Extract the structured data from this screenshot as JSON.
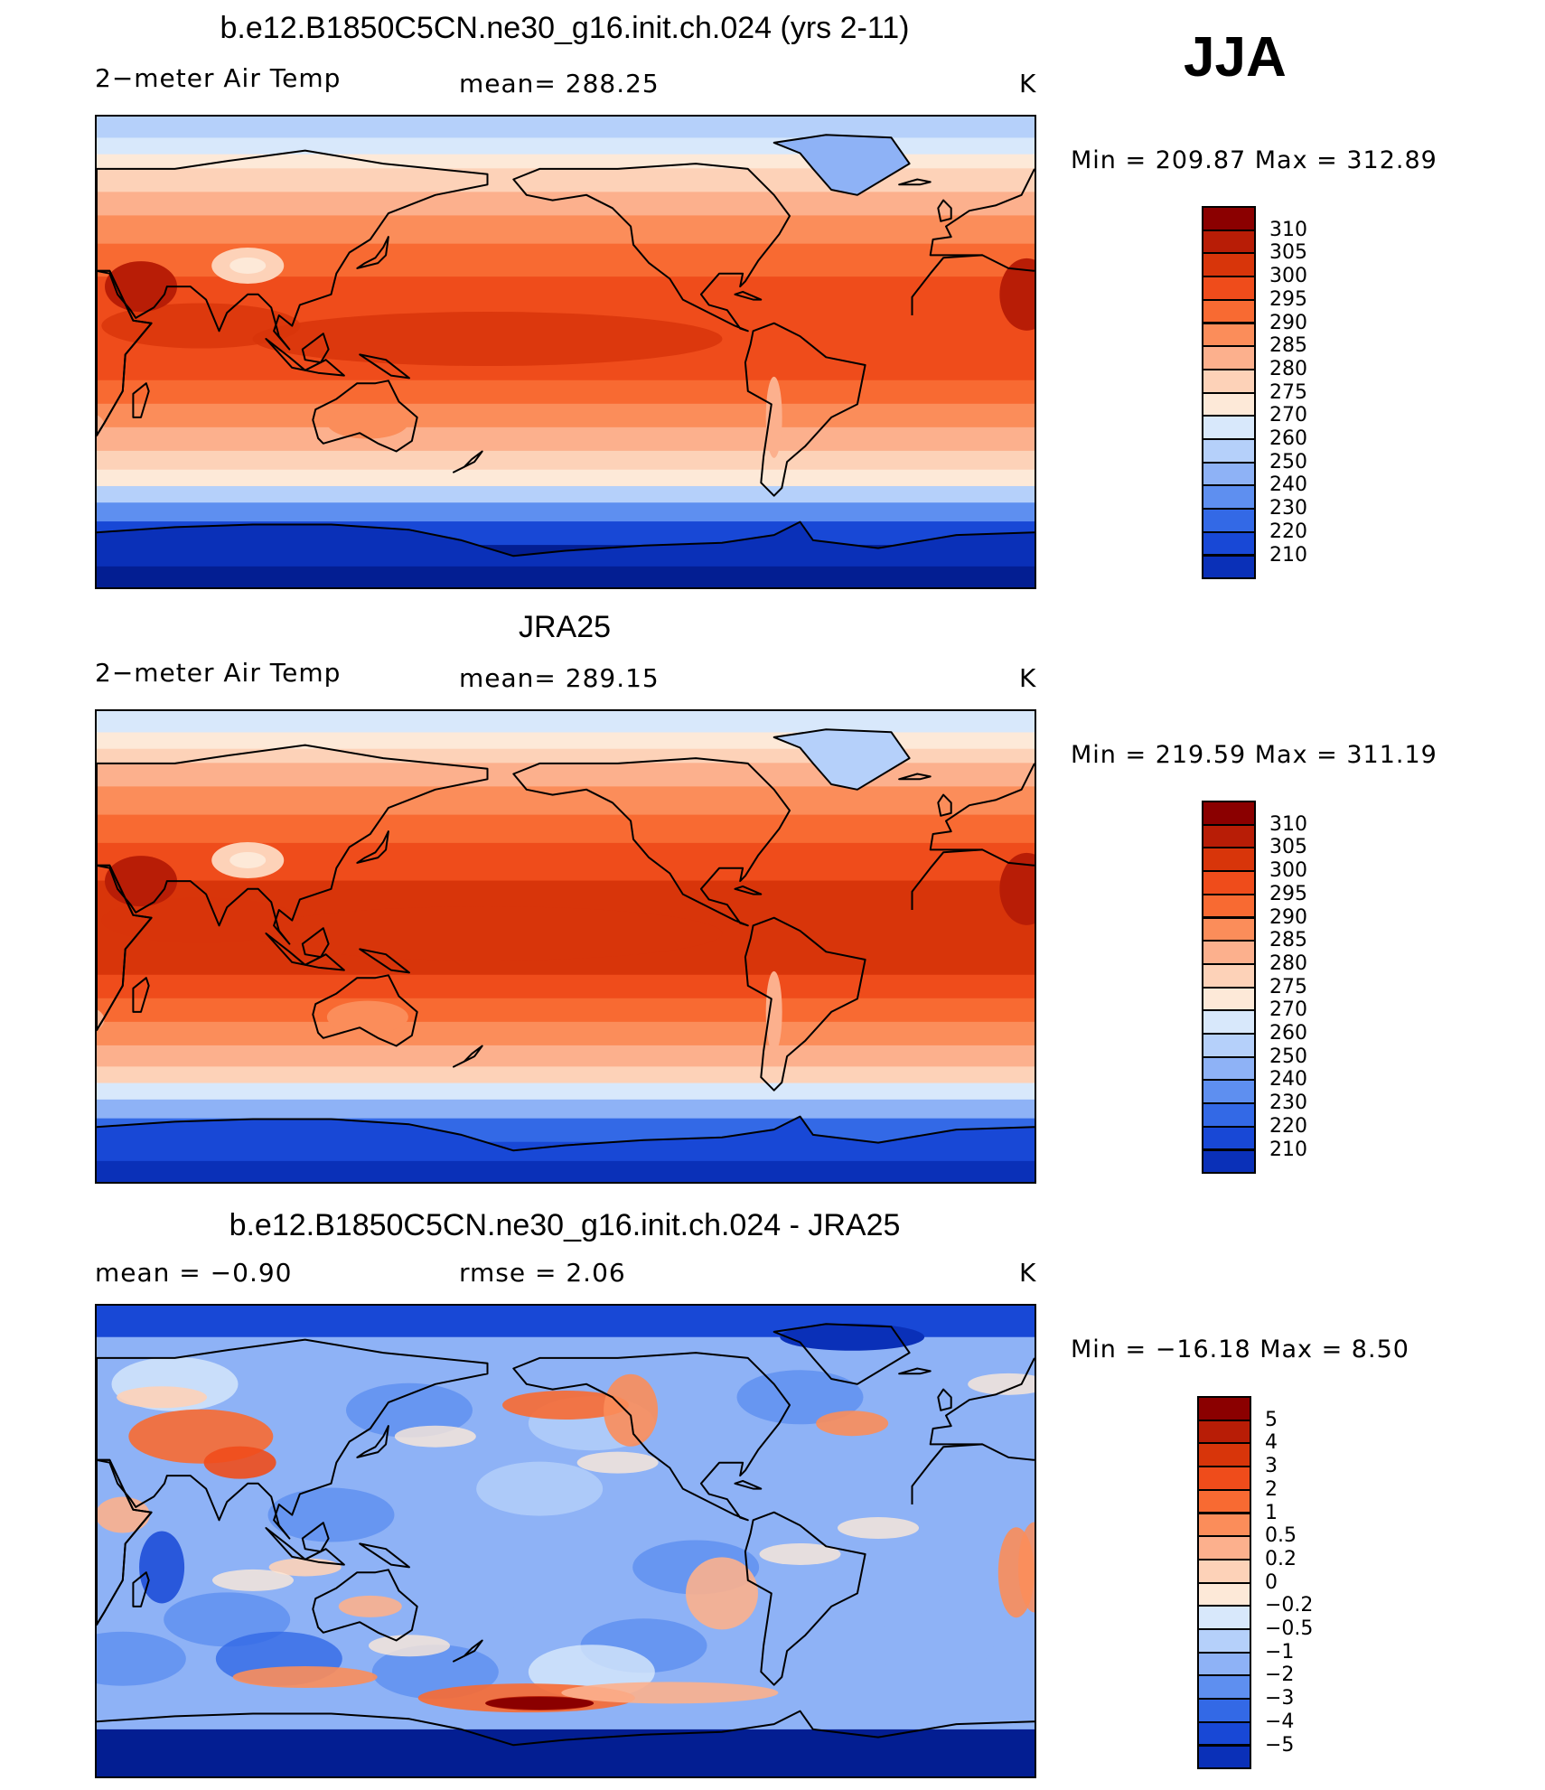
{
  "figure": {
    "season": "JJA"
  },
  "panels": [
    {
      "id": "model",
      "title": "b.e12.B1850C5CN.ne30_g16.init.ch.024 (yrs 2-11)",
      "variable": "2−meter Air Temp",
      "stat1": "mean=  288.25",
      "stat2": "",
      "units": "K",
      "minmax": "Min  =  209.87  Max  =  312.89",
      "colorbar": {
        "labels": [
          "310",
          "305",
          "300",
          "295",
          "290",
          "285",
          "280",
          "275",
          "270",
          "260",
          "250",
          "240",
          "230",
          "220",
          "210"
        ],
        "colors": [
          "#8b0000",
          "#b81d06",
          "#d8350a",
          "#ef4c1b",
          "#f86a32",
          "#fb8d5a",
          "#fcb08d",
          "#fdd2b8",
          "#fde9d8",
          "#d8e8fb",
          "#b5d0fa",
          "#8eb2f6",
          "#5e8ff0",
          "#3369e6",
          "#1848d6",
          "#0a30b8",
          "#031e92"
        ]
      },
      "style": "abs"
    },
    {
      "id": "obs",
      "title": "JRA25",
      "variable": "2−meter Air Temp",
      "stat1": "mean=  289.15",
      "stat2": "",
      "units": "K",
      "minmax": "Min  =  219.59  Max  =  311.19",
      "colorbar": {
        "labels": [
          "310",
          "305",
          "300",
          "295",
          "290",
          "285",
          "280",
          "275",
          "270",
          "260",
          "250",
          "240",
          "230",
          "220",
          "210"
        ],
        "colors": [
          "#8b0000",
          "#b81d06",
          "#d8350a",
          "#ef4c1b",
          "#f86a32",
          "#fb8d5a",
          "#fcb08d",
          "#fdd2b8",
          "#fde9d8",
          "#d8e8fb",
          "#b5d0fa",
          "#8eb2f6",
          "#5e8ff0",
          "#3369e6",
          "#1848d6",
          "#0a30b8",
          "#031e92"
        ]
      },
      "style": "abs"
    },
    {
      "id": "diff",
      "title": "b.e12.B1850C5CN.ne30_g16.init.ch.024 - JRA25",
      "variable": "mean  =    −0.90",
      "stat1": "rmse  =     2.06",
      "stat2": "",
      "units": "K",
      "minmax": "Min  =  −16.18  Max  =     8.50",
      "colorbar": {
        "labels": [
          "5",
          "4",
          "3",
          "2",
          "1",
          "0.5",
          "0.2",
          "0",
          "−0.2",
          "−0.5",
          "−1",
          "−2",
          "−3",
          "−4",
          "−5"
        ],
        "colors": [
          "#8b0000",
          "#b81d06",
          "#d8350a",
          "#ef4c1b",
          "#f86a32",
          "#fb8d5a",
          "#fcb08d",
          "#fdd2b8",
          "#fde9d8",
          "#d8e8fb",
          "#b5d0fa",
          "#8eb2f6",
          "#5e8ff0",
          "#3369e6",
          "#1848d6",
          "#0a30b8",
          "#031e92"
        ]
      },
      "style": "diff"
    }
  ]
}
